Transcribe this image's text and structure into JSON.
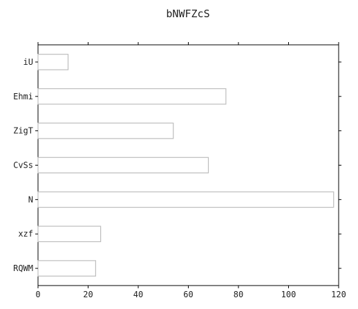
{
  "chart_data": {
    "type": "bar",
    "orientation": "horizontal",
    "title": "bNWFZcS",
    "xlabel": "",
    "ylabel": "",
    "categories": [
      "iU",
      "Ehmi",
      "ZigT",
      "CvSs",
      "N",
      "xzf",
      "RQWM"
    ],
    "values": [
      12,
      75,
      54,
      68,
      118,
      25,
      23
    ],
    "xlim": [
      0,
      120
    ],
    "xticks": [
      0,
      20,
      40,
      60,
      80,
      100,
      120
    ],
    "grid": false,
    "legend": "none",
    "colors": {
      "bar_fill": "#ffffff",
      "bar_edge": "#bdbdbd",
      "axis": "#000000",
      "text": "#222222"
    }
  }
}
